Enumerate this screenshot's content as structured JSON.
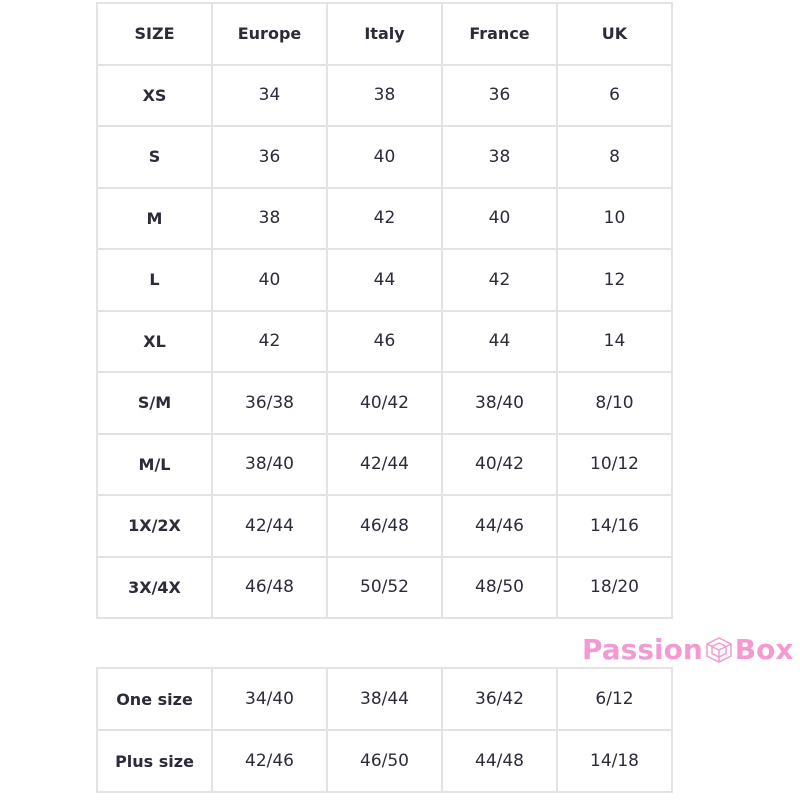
{
  "table": {
    "headers": [
      "SIZE",
      "Europe",
      "Italy",
      "France",
      "UK"
    ],
    "rows": [
      [
        "XS",
        "34",
        "38",
        "36",
        "6"
      ],
      [
        "S",
        "36",
        "40",
        "38",
        "8"
      ],
      [
        "M",
        "38",
        "42",
        "40",
        "10"
      ],
      [
        "L",
        "40",
        "44",
        "42",
        "12"
      ],
      [
        "XL",
        "42",
        "46",
        "44",
        "14"
      ],
      [
        "S/M",
        "36/38",
        "40/42",
        "38/40",
        "8/10"
      ],
      [
        "M/L",
        "38/40",
        "42/44",
        "40/42",
        "10/12"
      ],
      [
        "1X/2X",
        "42/44",
        "46/48",
        "44/46",
        "14/16"
      ],
      [
        "3X/4X",
        "46/48",
        "50/52",
        "48/50",
        "18/20"
      ]
    ]
  },
  "table2": {
    "rows": [
      [
        "One size",
        "34/40",
        "38/44",
        "36/42",
        "6/12"
      ],
      [
        "Plus size",
        "42/46",
        "46/50",
        "44/48",
        "14/18"
      ]
    ]
  },
  "watermark": {
    "text_left": "Passion",
    "text_right": "Box",
    "icon": "cube-icon",
    "color": "#f39ad3"
  }
}
